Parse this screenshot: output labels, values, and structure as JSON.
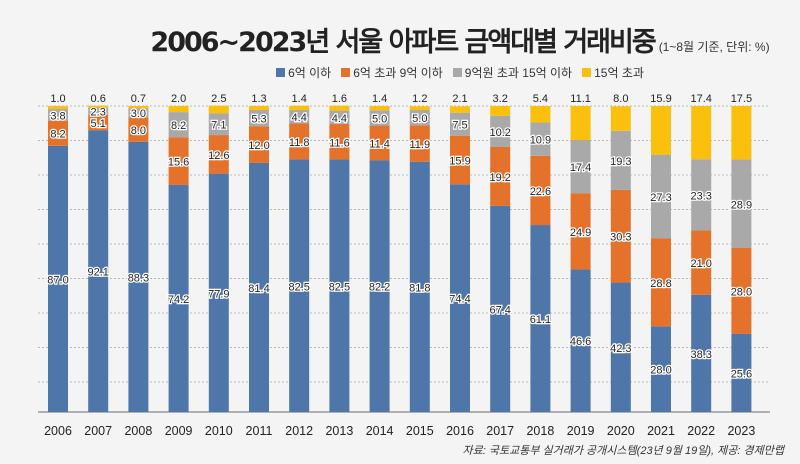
{
  "title": "2006~2023년 서울 아파트 금액대별 거래비중",
  "title_note": "(1~8월 기준, 단위: %)",
  "source": "자료: 국토교통부 실거래가 공개시스템(23년 9월 19일), 제공: 경제만랩",
  "chart_data": {
    "type": "bar",
    "stacked": true,
    "title": "2006~2023년 서울 아파트 금액대별 거래비중",
    "subtitle": "(1~8월 기준, 단위: %)",
    "xlabel": "",
    "ylabel": "",
    "ylim": [
      0,
      100
    ],
    "grid": true,
    "legend": "top",
    "categories": [
      "2006",
      "2007",
      "2008",
      "2009",
      "2010",
      "2011",
      "2012",
      "2013",
      "2014",
      "2015",
      "2016",
      "2017",
      "2018",
      "2019",
      "2020",
      "2021",
      "2022",
      "2023"
    ],
    "series": [
      {
        "name": "6억 이하",
        "color": "#4f76a8",
        "values": [
          87.0,
          92.1,
          88.3,
          74.2,
          77.9,
          81.4,
          82.5,
          82.5,
          82.2,
          81.8,
          74.4,
          67.4,
          61.1,
          46.6,
          42.3,
          28.0,
          38.3,
          25.6
        ]
      },
      {
        "name": "6억 초과 9억 이하",
        "color": "#e5722a",
        "values": [
          8.2,
          5.1,
          8.0,
          15.6,
          12.6,
          12.0,
          11.8,
          11.6,
          11.4,
          11.9,
          15.9,
          19.2,
          22.6,
          24.9,
          30.3,
          28.8,
          21.0,
          28.0
        ]
      },
      {
        "name": "9억원 초과 15억 이하",
        "color": "#a9a9a9",
        "values": [
          3.8,
          2.3,
          3.0,
          8.2,
          7.1,
          5.3,
          4.4,
          4.4,
          5.0,
          5.0,
          7.5,
          10.2,
          10.9,
          17.4,
          19.3,
          27.3,
          23.3,
          28.9
        ]
      },
      {
        "name": "15억 초과",
        "color": "#fbbf0d",
        "values": [
          1.0,
          0.6,
          0.7,
          2.0,
          2.5,
          1.3,
          1.4,
          1.6,
          1.4,
          1.2,
          2.1,
          3.2,
          5.4,
          11.1,
          8.0,
          15.9,
          17.4,
          17.5
        ]
      }
    ]
  }
}
